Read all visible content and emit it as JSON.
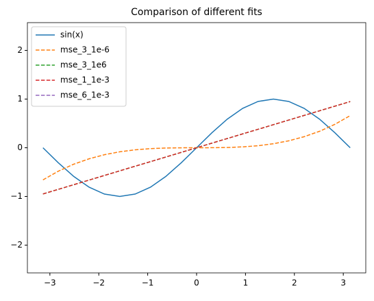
{
  "chart_data": {
    "type": "line",
    "title": "Comparison of different fits",
    "x": [
      -3.1416,
      -2.8274,
      -2.5133,
      -2.1991,
      -1.885,
      -1.5708,
      -1.2566,
      -0.9425,
      -0.6283,
      -0.3142,
      0,
      0.3142,
      0.6283,
      0.9425,
      1.2566,
      1.5708,
      1.885,
      2.1991,
      2.5133,
      2.8274,
      3.1416
    ],
    "series": [
      {
        "name": "sin(x)",
        "color": "#1f77b4",
        "linestyle": "solid",
        "values": [
          0,
          -0.309,
          -0.588,
          -0.809,
          -0.951,
          -1,
          -0.951,
          -0.809,
          -0.588,
          -0.309,
          0,
          0.309,
          0.588,
          0.809,
          0.951,
          1,
          0.951,
          0.809,
          0.588,
          0.309,
          0
        ]
      },
      {
        "name": "mse_3_1e-6",
        "color": "#ff7f0e",
        "linestyle": "dashed",
        "values": [
          -0.66,
          -0.481,
          -0.338,
          -0.227,
          -0.143,
          -0.083,
          -0.042,
          -0.018,
          -0.005,
          -0.001,
          0,
          0.001,
          0.005,
          0.018,
          0.042,
          0.083,
          0.143,
          0.227,
          0.338,
          0.481,
          0.66
        ]
      },
      {
        "name": "mse_3_1e6",
        "color": "#2ca02c",
        "linestyle": "dashed",
        "values": [
          -0.949,
          -0.854,
          -0.759,
          -0.664,
          -0.569,
          -0.474,
          -0.379,
          -0.285,
          -0.19,
          -0.095,
          0,
          0.095,
          0.19,
          0.285,
          0.379,
          0.474,
          0.569,
          0.664,
          0.759,
          0.854,
          0.949
        ]
      },
      {
        "name": "mse_1_1e-3",
        "color": "#d62728",
        "linestyle": "dashed",
        "values": [
          -0.949,
          -0.854,
          -0.759,
          -0.664,
          -0.569,
          -0.474,
          -0.379,
          -0.285,
          -0.19,
          -0.095,
          0,
          0.095,
          0.19,
          0.285,
          0.379,
          0.474,
          0.569,
          0.664,
          0.759,
          0.854,
          0.949
        ]
      },
      {
        "name": "mse_6_1e-3",
        "color": "#9467bd",
        "linestyle": "dashed",
        "values": [
          null,
          null,
          null,
          null,
          null,
          null,
          null,
          null,
          null,
          null,
          null,
          null,
          null,
          null,
          null,
          null,
          null,
          null,
          null,
          null,
          null
        ]
      }
    ],
    "xlim": [
      -3.46,
      3.46
    ],
    "xticks": [
      {
        "value": -3,
        "label": "−3"
      },
      {
        "value": -2,
        "label": "−2"
      },
      {
        "value": -1,
        "label": "−1"
      },
      0,
      1,
      2,
      3
    ],
    "ylim": [
      -2.57,
      2.57
    ],
    "yticks": [
      {
        "value": -2,
        "label": "−2"
      },
      {
        "value": -1,
        "label": "−1"
      },
      0,
      1,
      2
    ],
    "legend": "upper left"
  }
}
